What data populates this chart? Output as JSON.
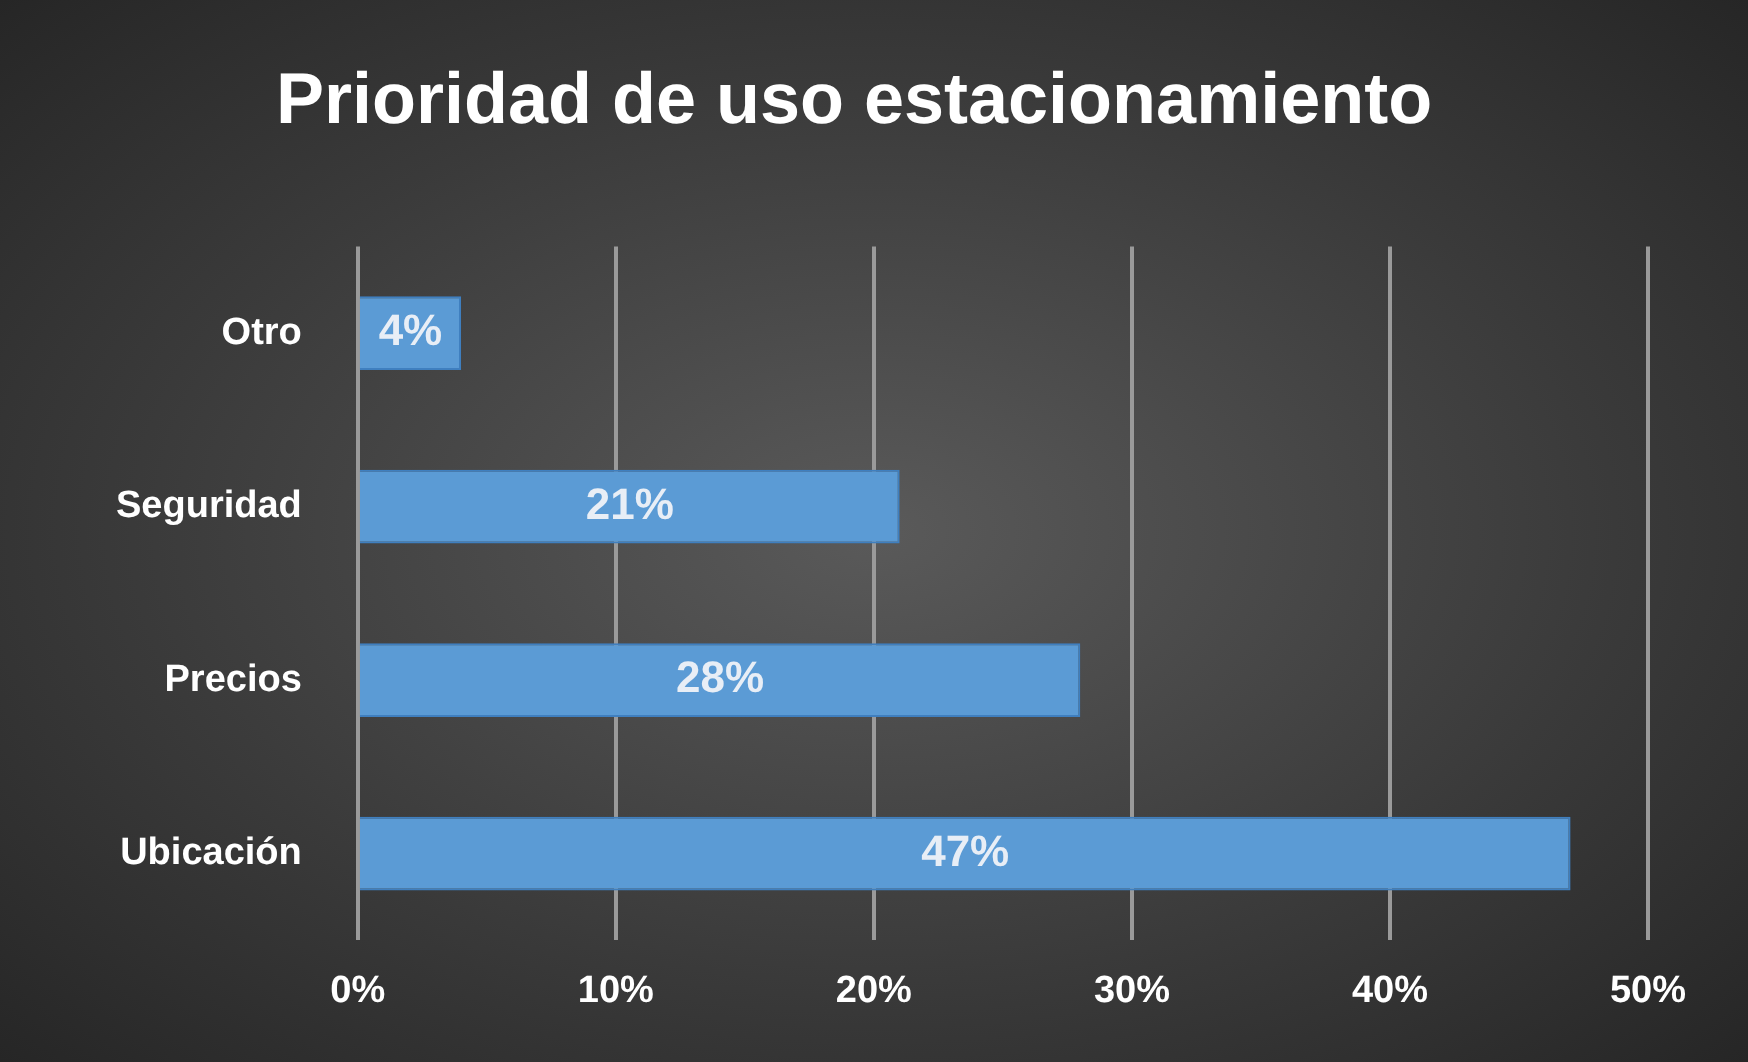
{
  "chart_data": {
    "type": "bar",
    "orientation": "horizontal",
    "title": "Prioridad de uso estacionamiento",
    "categories": [
      "Otro",
      "Seguridad",
      "Precios",
      "Ubicación"
    ],
    "values": [
      4,
      21,
      28,
      47
    ],
    "value_labels": [
      "4%",
      "21%",
      "28%",
      "47%"
    ],
    "color": "#5b9bd5",
    "xlim": [
      0,
      50
    ],
    "xticks": [
      {
        "value": 0,
        "label": "0%"
      },
      {
        "value": 10,
        "label": "10%"
      },
      {
        "value": 20,
        "label": "20%"
      },
      {
        "value": 30,
        "label": "30%"
      },
      {
        "value": 40,
        "label": "40%"
      },
      {
        "value": 50,
        "label": "50%"
      }
    ],
    "grid": "x",
    "legend": false
  }
}
